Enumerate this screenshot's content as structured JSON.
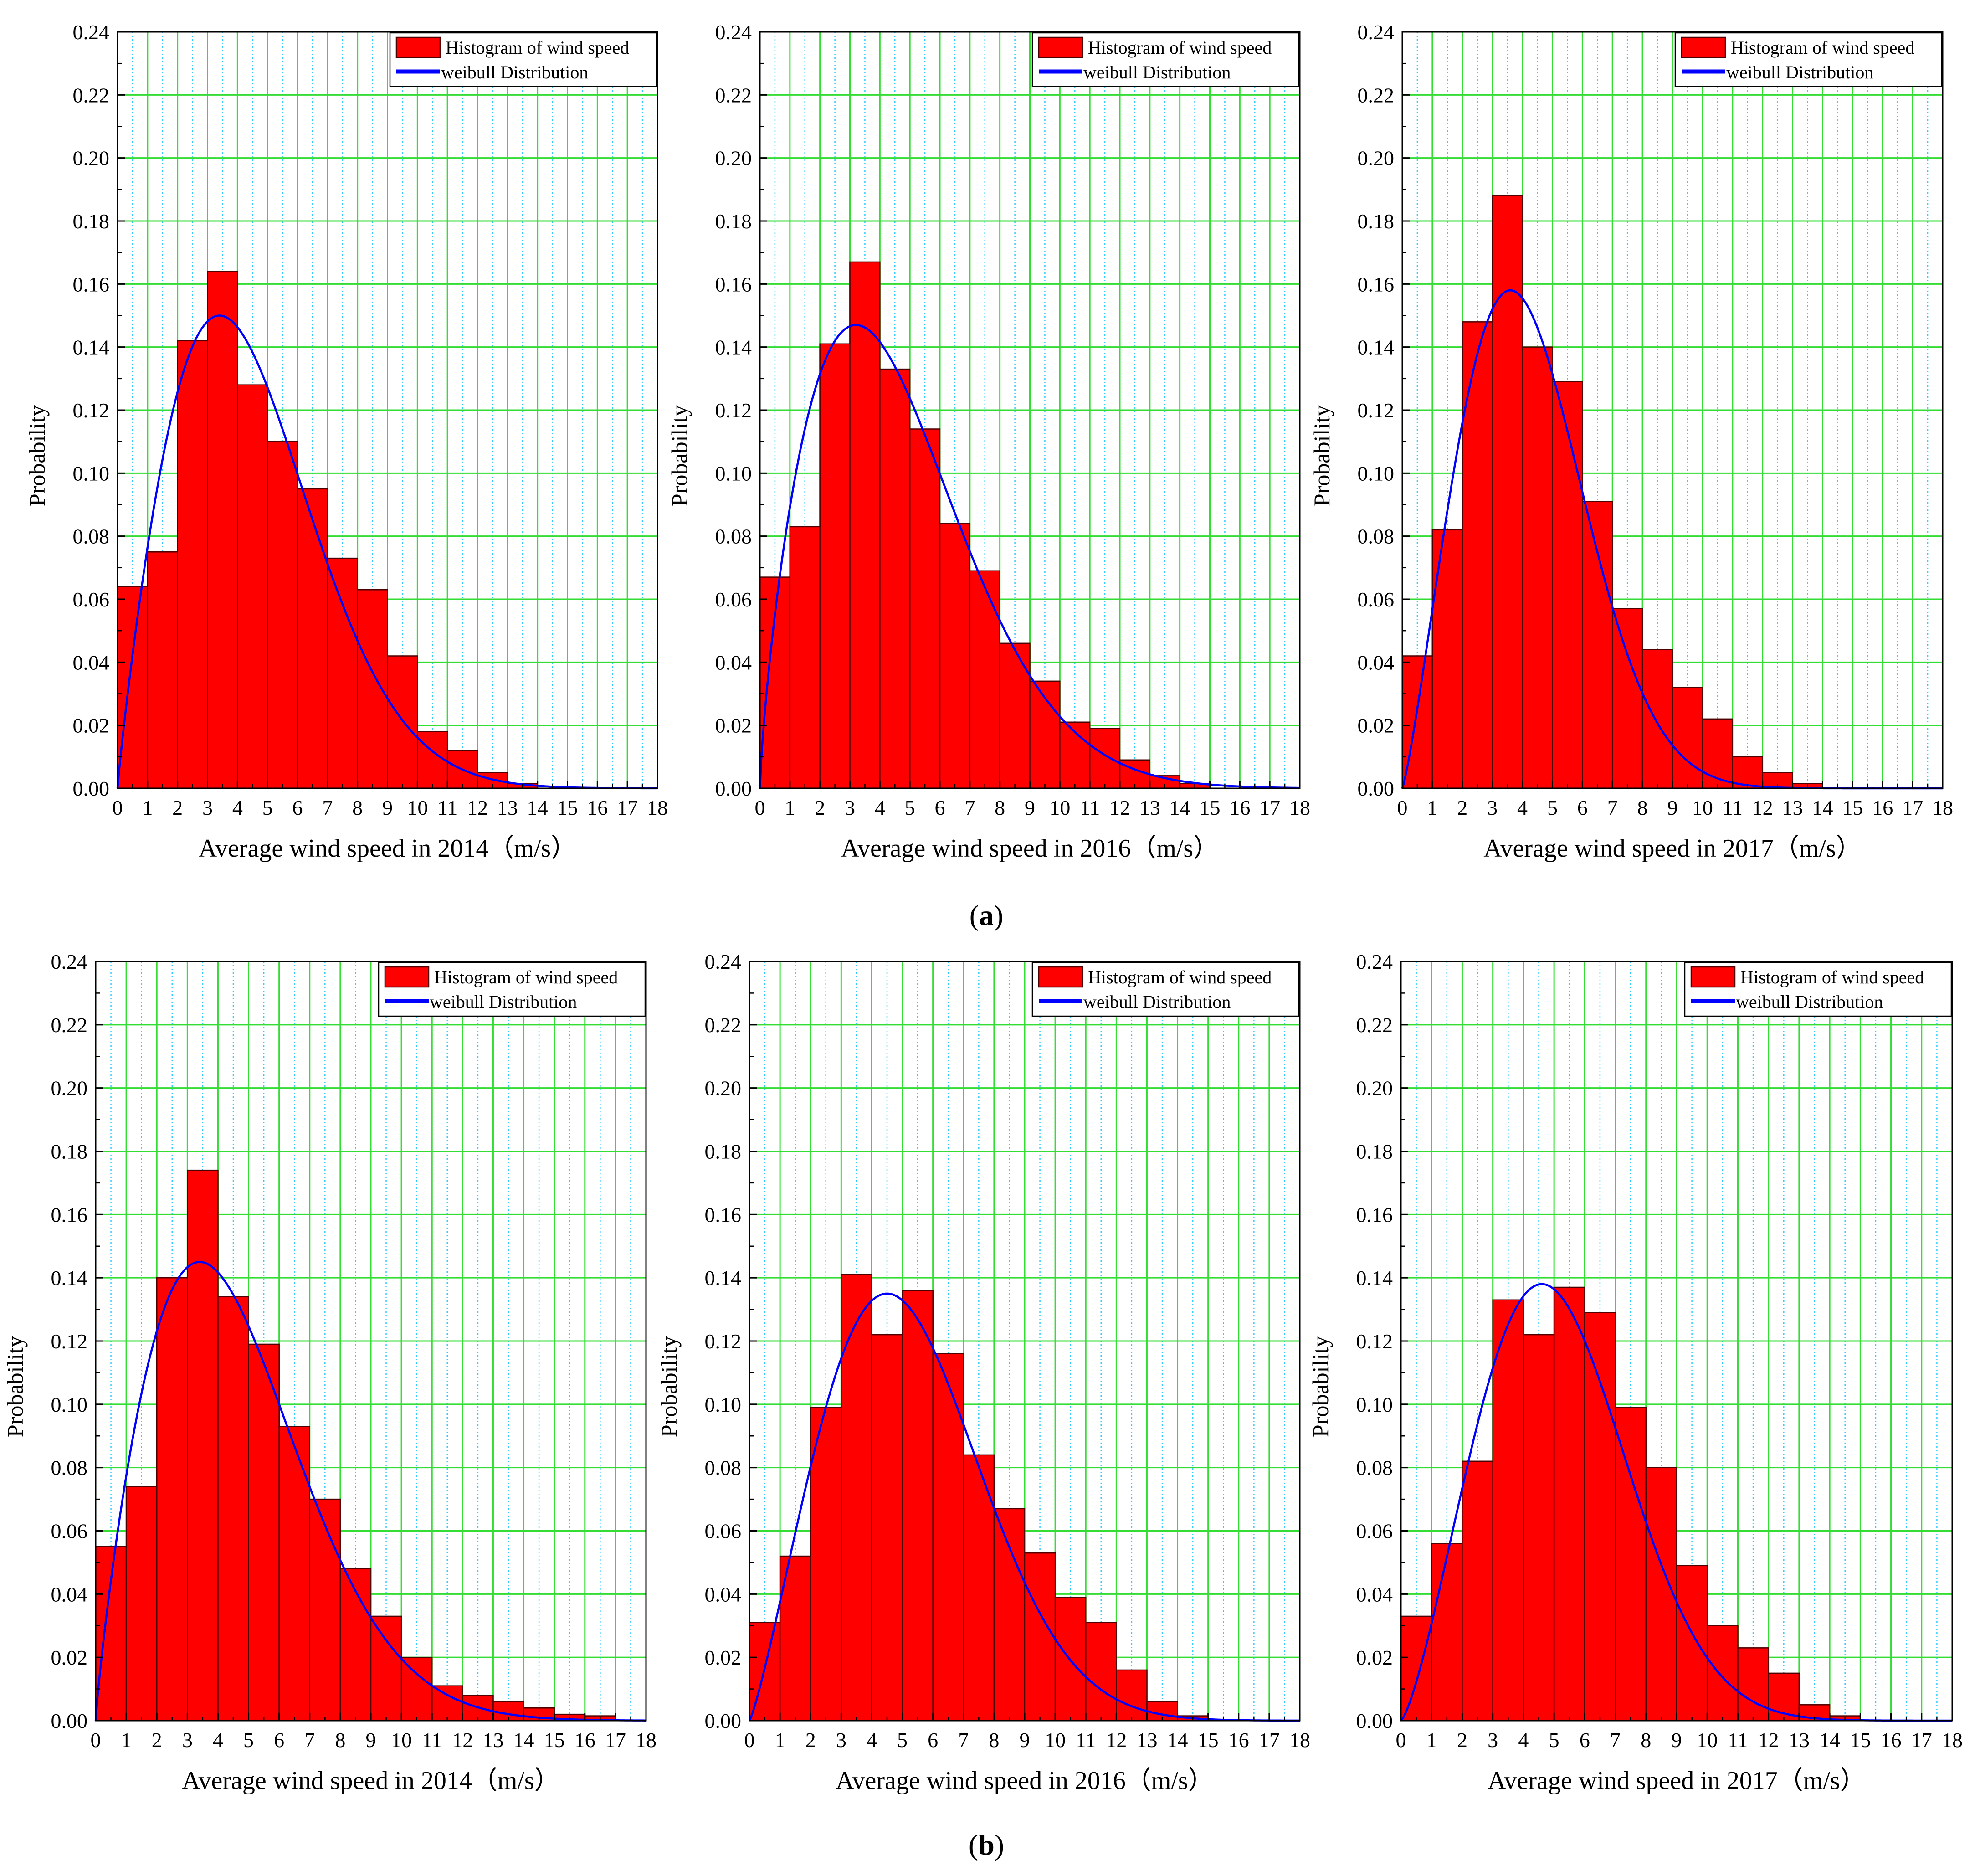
{
  "figure": {
    "panel_labels": [
      {
        "letter": "a",
        "open": "(",
        "close": ")"
      },
      {
        "letter": "b",
        "open": "(",
        "close": ")"
      }
    ]
  },
  "colors": {
    "bar_fill": "#ff0000",
    "bar_stroke": "#4d0000",
    "curve": "#0000ff",
    "major_grid": "#33dd33",
    "minor_grid": "#33ccff",
    "axis": "#000000"
  },
  "chart_data": [
    {
      "id": "a-2014",
      "row": "a",
      "type": "bar",
      "xlabel": "Average wind speed in 2014（m/s）",
      "ylabel": "Probability",
      "xlim": [
        0,
        18
      ],
      "ylim": [
        0,
        0.24
      ],
      "xticks": [
        "0",
        "1",
        "2",
        "3",
        "4",
        "5",
        "6",
        "7",
        "8",
        "9",
        "10",
        "11",
        "12",
        "13",
        "14",
        "15",
        "16",
        "17",
        "18"
      ],
      "yticks": [
        "0.00",
        "0.02",
        "0.04",
        "0.06",
        "0.08",
        "0.10",
        "0.12",
        "0.14",
        "0.16",
        "0.18",
        "0.20",
        "0.22",
        "0.24"
      ],
      "legend": {
        "position": "top-right",
        "entries": [
          "Histogram of wind speed",
          "weibull Distribution"
        ]
      },
      "bin_width": 1,
      "bins": [
        0,
        1,
        2,
        3,
        4,
        5,
        6,
        7,
        8,
        9,
        10,
        11,
        12,
        13,
        14,
        15,
        16,
        17
      ],
      "values": [
        0.064,
        0.075,
        0.142,
        0.164,
        0.128,
        0.11,
        0.095,
        0.073,
        0.063,
        0.042,
        0.018,
        0.012,
        0.005,
        0.0015,
        0,
        0,
        0,
        0
      ],
      "weibull": {
        "k": 1.9,
        "peak_x": 3.4,
        "peak_y": 0.15
      }
    },
    {
      "id": "a-2016",
      "row": "a",
      "type": "bar",
      "xlabel": "Average wind speed in 2016（m/s）",
      "ylabel": "Probability",
      "xlim": [
        0,
        18
      ],
      "ylim": [
        0,
        0.24
      ],
      "xticks": [
        "0",
        "1",
        "2",
        "3",
        "4",
        "5",
        "6",
        "7",
        "8",
        "9",
        "10",
        "11",
        "12",
        "13",
        "14",
        "15",
        "16",
        "17",
        "18"
      ],
      "yticks": [
        "0.00",
        "0.02",
        "0.04",
        "0.06",
        "0.08",
        "0.10",
        "0.12",
        "0.14",
        "0.16",
        "0.18",
        "0.20",
        "0.22",
        "0.24"
      ],
      "legend": {
        "position": "top-right",
        "entries": [
          "Histogram of wind speed",
          "weibull Distribution"
        ]
      },
      "bin_width": 1,
      "bins": [
        0,
        1,
        2,
        3,
        4,
        5,
        6,
        7,
        8,
        9,
        10,
        11,
        12,
        13,
        14,
        15,
        16,
        17
      ],
      "values": [
        0.067,
        0.083,
        0.141,
        0.167,
        0.133,
        0.114,
        0.084,
        0.069,
        0.046,
        0.034,
        0.021,
        0.019,
        0.009,
        0.004,
        0.0015,
        0,
        0,
        0
      ],
      "weibull": {
        "k": 1.75,
        "peak_x": 3.2,
        "peak_y": 0.147
      }
    },
    {
      "id": "a-2017",
      "row": "a",
      "type": "bar",
      "xlabel": "Average wind speed in 2017（m/s）",
      "ylabel": "Probability",
      "xlim": [
        0,
        18
      ],
      "ylim": [
        0,
        0.24
      ],
      "xticks": [
        "0",
        "1",
        "2",
        "3",
        "4",
        "5",
        "6",
        "7",
        "8",
        "9",
        "10",
        "11",
        "12",
        "13",
        "14",
        "15",
        "16",
        "17",
        "18"
      ],
      "yticks": [
        "0.00",
        "0.02",
        "0.04",
        "0.06",
        "0.08",
        "0.10",
        "0.12",
        "0.14",
        "0.16",
        "0.18",
        "0.20",
        "0.22",
        "0.24"
      ],
      "legend": {
        "position": "top-right",
        "entries": [
          "Histogram of wind speed",
          "weibull Distribution"
        ]
      },
      "bin_width": 1,
      "bins": [
        0,
        1,
        2,
        3,
        4,
        5,
        6,
        7,
        8,
        9,
        10,
        11,
        12,
        13,
        14,
        15,
        16,
        17
      ],
      "values": [
        0.042,
        0.082,
        0.148,
        0.188,
        0.14,
        0.129,
        0.091,
        0.057,
        0.044,
        0.032,
        0.022,
        0.01,
        0.005,
        0.0015,
        0,
        0,
        0,
        0
      ],
      "weibull": {
        "k": 2.2,
        "peak_x": 3.6,
        "peak_y": 0.158
      }
    },
    {
      "id": "b-2014",
      "row": "b",
      "type": "bar",
      "xlabel": "Average wind speed in 2014（m/s）",
      "ylabel": "Probability",
      "xlim": [
        0,
        18
      ],
      "ylim": [
        0,
        0.24
      ],
      "xticks": [
        "0",
        "1",
        "2",
        "3",
        "4",
        "5",
        "6",
        "7",
        "8",
        "9",
        "10",
        "11",
        "12",
        "13",
        "14",
        "15",
        "16",
        "17",
        "18"
      ],
      "yticks": [
        "0.00",
        "0.02",
        "0.04",
        "0.06",
        "0.08",
        "0.10",
        "0.12",
        "0.14",
        "0.16",
        "0.18",
        "0.20",
        "0.22",
        "0.24"
      ],
      "legend": {
        "position": "top-right",
        "entries": [
          "Histogram of wind speed",
          "weibull Distribution"
        ]
      },
      "bin_width": 1,
      "bins": [
        0,
        1,
        2,
        3,
        4,
        5,
        6,
        7,
        8,
        9,
        10,
        11,
        12,
        13,
        14,
        15,
        16,
        17
      ],
      "values": [
        0.055,
        0.074,
        0.14,
        0.174,
        0.134,
        0.119,
        0.093,
        0.07,
        0.048,
        0.033,
        0.02,
        0.011,
        0.008,
        0.006,
        0.004,
        0.002,
        0.0015,
        0
      ],
      "weibull": {
        "k": 1.85,
        "peak_x": 3.4,
        "peak_y": 0.145
      }
    },
    {
      "id": "b-2016",
      "row": "b",
      "type": "bar",
      "xlabel": "Average wind speed in 2016（m/s）",
      "ylabel": "Probability",
      "xlim": [
        0,
        18
      ],
      "ylim": [
        0,
        0.24
      ],
      "xticks": [
        "0",
        "1",
        "2",
        "3",
        "4",
        "5",
        "6",
        "7",
        "8",
        "9",
        "10",
        "11",
        "12",
        "13",
        "14",
        "15",
        "16",
        "17",
        "18"
      ],
      "yticks": [
        "0.00",
        "0.02",
        "0.04",
        "0.06",
        "0.08",
        "0.10",
        "0.12",
        "0.14",
        "0.16",
        "0.18",
        "0.20",
        "0.22",
        "0.24"
      ],
      "legend": {
        "position": "top-right",
        "entries": [
          "Histogram of wind speed",
          "weibull Distribution"
        ]
      },
      "bin_width": 1,
      "bins": [
        0,
        1,
        2,
        3,
        4,
        5,
        6,
        7,
        8,
        9,
        10,
        11,
        12,
        13,
        14,
        15,
        16,
        17
      ],
      "values": [
        0.031,
        0.052,
        0.099,
        0.141,
        0.122,
        0.136,
        0.116,
        0.084,
        0.067,
        0.053,
        0.039,
        0.031,
        0.016,
        0.006,
        0.0015,
        0,
        0,
        0
      ],
      "weibull": {
        "k": 2.2,
        "peak_x": 4.5,
        "peak_y": 0.135
      }
    },
    {
      "id": "b-2017",
      "row": "b",
      "type": "bar",
      "xlabel": "Average wind speed in 2017（m/s）",
      "ylabel": "Probability",
      "xlim": [
        0,
        18
      ],
      "ylim": [
        0,
        0.24
      ],
      "xticks": [
        "0",
        "1",
        "2",
        "3",
        "4",
        "5",
        "6",
        "7",
        "8",
        "9",
        "10",
        "11",
        "12",
        "13",
        "14",
        "15",
        "16",
        "17",
        "18"
      ],
      "yticks": [
        "0.00",
        "0.02",
        "0.04",
        "0.06",
        "0.08",
        "0.10",
        "0.12",
        "0.14",
        "0.16",
        "0.18",
        "0.20",
        "0.22",
        "0.24"
      ],
      "legend": {
        "position": "top-right",
        "entries": [
          "Histogram of wind speed",
          "weibull Distribution"
        ]
      },
      "bin_width": 1,
      "bins": [
        0,
        1,
        2,
        3,
        4,
        5,
        6,
        7,
        8,
        9,
        10,
        11,
        12,
        13,
        14,
        15,
        16,
        17
      ],
      "values": [
        0.033,
        0.056,
        0.082,
        0.133,
        0.122,
        0.137,
        0.129,
        0.099,
        0.08,
        0.049,
        0.03,
        0.023,
        0.015,
        0.005,
        0.0015,
        0,
        0,
        0
      ],
      "weibull": {
        "k": 2.35,
        "peak_x": 4.6,
        "peak_y": 0.138
      }
    }
  ]
}
